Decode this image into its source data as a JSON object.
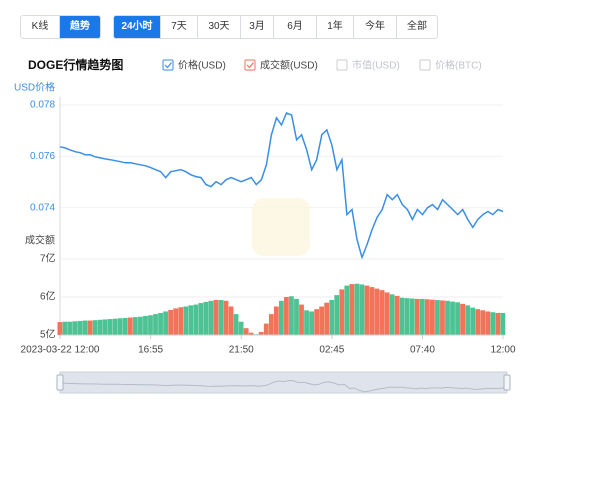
{
  "tabs": {
    "items": [
      "K线",
      "趋势"
    ],
    "active": 1
  },
  "ranges": {
    "items": [
      "24小时",
      "7天",
      "30天",
      "3月",
      "6月",
      "1年",
      "今年",
      "全部"
    ],
    "active": 0
  },
  "title": "DOGE行情趋势图",
  "legend": [
    {
      "name": "价格(USD)",
      "color": "#3a8ee6",
      "checked": true
    },
    {
      "name": "成交额(USD)",
      "color": "#f0735a",
      "checked": true
    },
    {
      "name": "市值(USD)",
      "color": "#c8ccd2",
      "checked": false
    },
    {
      "name": "价格(BTC)",
      "color": "#c8ccd2",
      "checked": false
    }
  ],
  "chart_data": [
    {
      "type": "line",
      "y_label": "USD价格",
      "color": "#3a8ee6",
      "ylim": [
        0.072,
        0.078
      ],
      "yticks": [
        0.074,
        0.076,
        0.078
      ],
      "values": [
        0.07637,
        0.07633,
        0.07625,
        0.07618,
        0.07614,
        0.07606,
        0.07606,
        0.07598,
        0.07594,
        0.0759,
        0.07587,
        0.07583,
        0.07579,
        0.07575,
        0.07575,
        0.07571,
        0.07567,
        0.07563,
        0.07556,
        0.07548,
        0.0754,
        0.07517,
        0.0754,
        0.07544,
        0.07548,
        0.0754,
        0.07528,
        0.07521,
        0.07517,
        0.0749,
        0.07482,
        0.07501,
        0.0749,
        0.07509,
        0.07517,
        0.07509,
        0.07501,
        0.07509,
        0.07517,
        0.0749,
        0.07509,
        0.07567,
        0.07684,
        0.0775,
        0.07722,
        0.07769,
        0.07761,
        0.07664,
        0.07684,
        0.07625,
        0.07548,
        0.07587,
        0.07684,
        0.07703,
        0.07645,
        0.07548,
        0.07587,
        0.07373,
        0.07393,
        0.07276,
        0.07206,
        0.07257,
        0.07315,
        0.07362,
        0.07393,
        0.07451,
        0.07431,
        0.07451,
        0.07412,
        0.07393,
        0.07354,
        0.07393,
        0.07373,
        0.074,
        0.07412,
        0.07393,
        0.07431,
        0.07412,
        0.07393,
        0.07373,
        0.07393,
        0.07354,
        0.07323,
        0.07354,
        0.07373,
        0.07385,
        0.07373,
        0.07393,
        0.07385
      ]
    },
    {
      "type": "bar",
      "y_label": "成交额",
      "up_color": "#f0735a",
      "down_color": "#4dc393",
      "ylim": [
        5,
        7
      ],
      "yticks": [
        {
          "value": 5,
          "label": "5亿"
        },
        {
          "value": 6,
          "label": "6亿"
        },
        {
          "value": 7,
          "label": "7亿"
        }
      ],
      "categories": [
        "2023-03-22 12:00",
        null,
        null,
        null,
        null,
        null,
        null,
        null,
        null,
        null,
        null,
        null,
        null,
        null,
        null,
        null,
        null,
        null,
        "16:55",
        null,
        null,
        null,
        null,
        null,
        null,
        null,
        null,
        null,
        null,
        null,
        null,
        null,
        null,
        null,
        null,
        null,
        "21:50",
        null,
        null,
        null,
        null,
        null,
        null,
        null,
        null,
        null,
        null,
        null,
        null,
        null,
        null,
        null,
        null,
        null,
        "02:45",
        null,
        null,
        null,
        null,
        null,
        null,
        null,
        null,
        null,
        null,
        null,
        null,
        null,
        null,
        null,
        null,
        null,
        "07:40",
        null,
        null,
        null,
        null,
        null,
        null,
        null,
        null,
        null,
        null,
        null,
        null,
        null,
        null,
        null,
        "12:00"
      ],
      "values": [
        5.34,
        5.35,
        5.35,
        5.36,
        5.37,
        5.38,
        5.38,
        5.39,
        5.4,
        5.41,
        5.42,
        5.43,
        5.44,
        5.45,
        5.46,
        5.47,
        5.48,
        5.5,
        5.52,
        5.55,
        5.58,
        5.62,
        5.66,
        5.7,
        5.73,
        5.75,
        5.78,
        5.8,
        5.84,
        5.87,
        5.9,
        5.92,
        5.92,
        5.9,
        5.75,
        5.55,
        5.35,
        5.18,
        5.06,
        5.02,
        5.08,
        5.3,
        5.55,
        5.75,
        5.9,
        6.0,
        6.02,
        5.95,
        5.8,
        5.65,
        5.62,
        5.68,
        5.75,
        5.85,
        5.92,
        6.05,
        6.2,
        6.3,
        6.34,
        6.35,
        6.33,
        6.3,
        6.26,
        6.22,
        6.18,
        6.12,
        6.07,
        6.03,
        5.98,
        5.97,
        5.96,
        5.95,
        5.95,
        5.94,
        5.93,
        5.92,
        5.91,
        5.9,
        5.88,
        5.86,
        5.82,
        5.78,
        5.72,
        5.68,
        5.65,
        5.62,
        5.6,
        5.58,
        5.58
      ]
    }
  ]
}
